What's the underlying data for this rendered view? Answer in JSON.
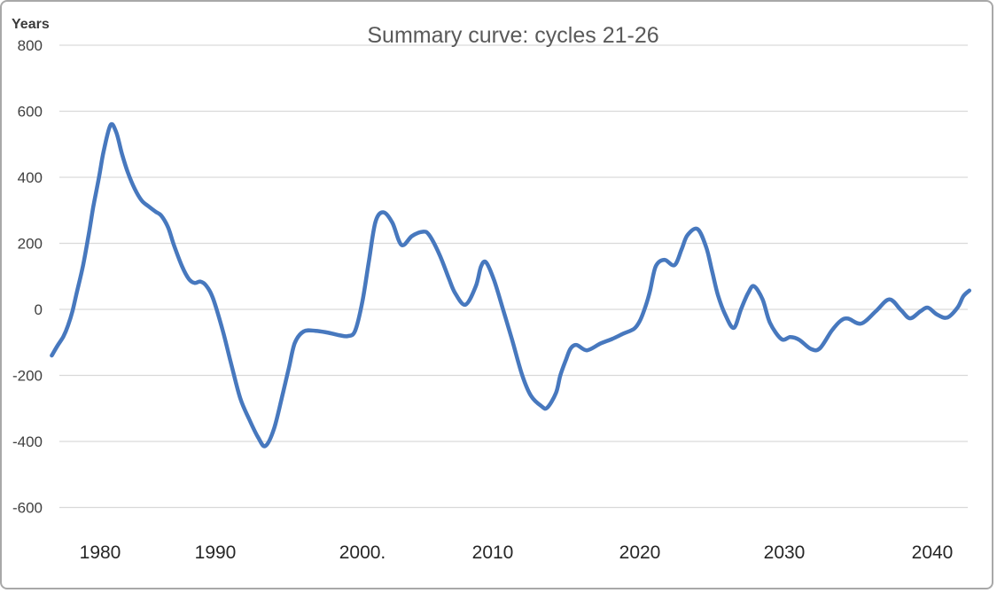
{
  "chart_data": {
    "type": "line",
    "title": "Summary curve: cycles 21-26",
    "y_axis_label": "Years",
    "x_axis_label": "",
    "legend": "none",
    "grid": "horizontal-only",
    "ylim": [
      -600,
      800
    ],
    "xlim_years": [
      1975.8,
      2042.6
    ],
    "x_tick_labels": [
      "1980",
      "1990",
      "2000.",
      "2010",
      "2020",
      "2030",
      "2040"
    ],
    "y_tick_labels": [
      "800",
      "600",
      "400",
      "200",
      "0",
      "-200",
      "-400",
      "-600"
    ],
    "y_tick_values": [
      800,
      600,
      400,
      200,
      0,
      -200,
      -400,
      -600
    ],
    "series": [
      {
        "name": "Summary curve (cycles 21-26)",
        "color": "#4778BE",
        "stroke_width": 4.5,
        "points": [
          [
            1975.8,
            -140
          ],
          [
            1976.3,
            -110
          ],
          [
            1976.8,
            -83
          ],
          [
            1977.2,
            -50
          ],
          [
            1977.6,
            -5
          ],
          [
            1978.0,
            55
          ],
          [
            1978.5,
            130
          ],
          [
            1979.0,
            225
          ],
          [
            1979.4,
            310
          ],
          [
            1979.9,
            400
          ],
          [
            1980.3,
            478
          ],
          [
            1980.9,
            558
          ],
          [
            1981.4,
            536
          ],
          [
            1981.9,
            470
          ],
          [
            1982.4,
            415
          ],
          [
            1983.0,
            365
          ],
          [
            1983.6,
            330
          ],
          [
            1984.2,
            312
          ],
          [
            1984.8,
            296
          ],
          [
            1985.3,
            284
          ],
          [
            1985.9,
            248
          ],
          [
            1986.4,
            195
          ],
          [
            1987.1,
            131
          ],
          [
            1987.7,
            92
          ],
          [
            1988.2,
            80
          ],
          [
            1988.7,
            84
          ],
          [
            1989.2,
            72
          ],
          [
            1989.8,
            33
          ],
          [
            1990.5,
            -64
          ],
          [
            1991.1,
            -170
          ],
          [
            1991.7,
            -270
          ],
          [
            1992.3,
            -333
          ],
          [
            1992.9,
            -387
          ],
          [
            1993.4,
            -414
          ],
          [
            1994.0,
            -360
          ],
          [
            1994.6,
            -252
          ],
          [
            1995.0,
            -177
          ],
          [
            1995.4,
            -102
          ],
          [
            1996.0,
            -67
          ],
          [
            1996.8,
            -65
          ],
          [
            1997.6,
            -70
          ],
          [
            1998.4,
            -78
          ],
          [
            1999.0,
            -81
          ],
          [
            1999.5,
            -65
          ],
          [
            2000.0,
            25
          ],
          [
            2000.5,
            148
          ],
          [
            2001.0,
            265
          ],
          [
            2001.6,
            294
          ],
          [
            2002.3,
            262
          ],
          [
            2003.0,
            195
          ],
          [
            2003.8,
            222
          ],
          [
            2004.6,
            235
          ],
          [
            2005.1,
            226
          ],
          [
            2005.9,
            167
          ],
          [
            2006.6,
            97
          ],
          [
            2007.1,
            50
          ],
          [
            2007.9,
            14
          ],
          [
            2008.7,
            70
          ],
          [
            2009.1,
            130
          ],
          [
            2009.5,
            142
          ],
          [
            2010.1,
            87
          ],
          [
            2010.7,
            0
          ],
          [
            2011.3,
            -90
          ],
          [
            2012.0,
            -199
          ],
          [
            2012.6,
            -262
          ],
          [
            2013.3,
            -293
          ],
          [
            2013.7,
            -298
          ],
          [
            2014.3,
            -253
          ],
          [
            2014.6,
            -199
          ],
          [
            2015.0,
            -150
          ],
          [
            2015.3,
            -118
          ],
          [
            2015.7,
            -108
          ],
          [
            2016.4,
            -124
          ],
          [
            2017.3,
            -104
          ],
          [
            2018.1,
            -90
          ],
          [
            2018.9,
            -73
          ],
          [
            2019.6,
            -59
          ],
          [
            2020.0,
            -35
          ],
          [
            2020.4,
            10
          ],
          [
            2020.7,
            55
          ],
          [
            2021.1,
            130
          ],
          [
            2021.7,
            150
          ],
          [
            2022.4,
            134
          ],
          [
            2022.9,
            183
          ],
          [
            2023.3,
            225
          ],
          [
            2024.0,
            243
          ],
          [
            2024.6,
            187
          ],
          [
            2025.0,
            116
          ],
          [
            2025.4,
            44
          ],
          [
            2025.9,
            -15
          ],
          [
            2026.5,
            -56
          ],
          [
            2027.0,
            0
          ],
          [
            2027.5,
            50
          ],
          [
            2027.9,
            70
          ],
          [
            2028.5,
            30
          ],
          [
            2029.0,
            -40
          ],
          [
            2029.8,
            -90
          ],
          [
            2030.4,
            -84
          ],
          [
            2031.0,
            -92
          ],
          [
            2031.8,
            -120
          ],
          [
            2032.4,
            -118
          ],
          [
            2033.2,
            -65
          ],
          [
            2033.8,
            -35
          ],
          [
            2034.3,
            -28
          ],
          [
            2035.2,
            -43
          ],
          [
            2036.2,
            -5
          ],
          [
            2037.1,
            30
          ],
          [
            2037.9,
            -3
          ],
          [
            2038.5,
            -27
          ],
          [
            2039.2,
            -6
          ],
          [
            2039.7,
            5
          ],
          [
            2040.3,
            -15
          ],
          [
            2041.0,
            -25
          ],
          [
            2041.7,
            5
          ],
          [
            2042.1,
            40
          ],
          [
            2042.5,
            57
          ]
        ]
      }
    ]
  },
  "colors": {
    "background": "#ffffff",
    "border": "#a8a8a8",
    "grid": "#d9d9d9",
    "title": "#595959",
    "y_tick": "#404040",
    "x_tick": "#262626",
    "axis_label": "#3a3a3a",
    "line": "#4778BE"
  }
}
